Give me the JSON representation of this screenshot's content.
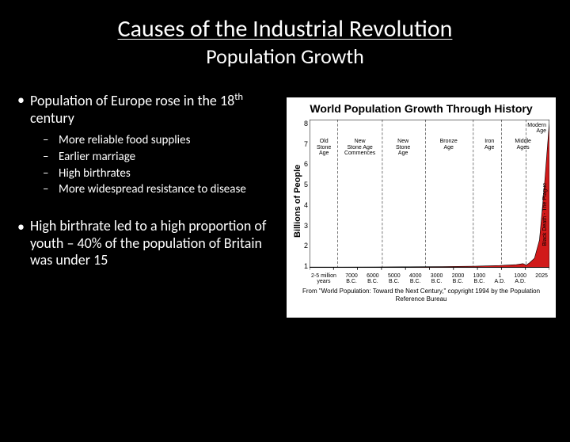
{
  "title": "Causes of the Industrial Revolution",
  "subtitle": "Population Growth",
  "bullets": {
    "b1_pre": "Population of Europe rose in the 18",
    "b1_sup": "th",
    "b1_post": " century",
    "sub1": "More reliable food supplies",
    "sub2": "Earlier marriage",
    "sub3": "High birthrates",
    "sub4": "More widespread resistance to disease",
    "b2": "High birthrate led to a high proportion of youth – 40% of the population of Britain was under 15"
  },
  "chart": {
    "type": "area",
    "title": "World Population Growth Through History",
    "ylabel": "Billions of People",
    "ylim": [
      0,
      8
    ],
    "yticks": [
      "8",
      "7",
      "6",
      "5",
      "4",
      "3",
      "2",
      "1"
    ],
    "xticks": [
      {
        "top": "2-5 million",
        "bot": "years"
      },
      {
        "top": "7000",
        "bot": "B.C."
      },
      {
        "top": "6000",
        "bot": "B.C."
      },
      {
        "top": "5000",
        "bot": "B.C."
      },
      {
        "top": "4000",
        "bot": "B.C."
      },
      {
        "top": "3000",
        "bot": "B.C."
      },
      {
        "top": "2000",
        "bot": "B.C."
      },
      {
        "top": "1000",
        "bot": "B.C."
      },
      {
        "top": "1",
        "bot": "A.D."
      },
      {
        "top": "1000",
        "bot": "A.D."
      },
      {
        "top": "2025",
        "bot": ""
      }
    ],
    "eras": [
      {
        "label": "Old\nStone\nAge",
        "w": 12
      },
      {
        "label": "New\nStone Age\nCommences",
        "w": 18
      },
      {
        "label": "New\nStone\nAge",
        "w": 18
      },
      {
        "label": "Bronze\nAge",
        "w": 20
      },
      {
        "label": "Iron\nAge",
        "w": 14
      },
      {
        "label": "Middle\nAges",
        "w": 14
      }
    ],
    "annotations": {
      "modern": "Modern\nAge",
      "plague": "Black Death - The Plague"
    },
    "colors": {
      "bg": "#ffffff",
      "line": "#000000",
      "fill": "#d11a1a",
      "divider": "#000000"
    },
    "series_points": [
      [
        0,
        0.01
      ],
      [
        40,
        0.015
      ],
      [
        80,
        0.02
      ],
      [
        120,
        0.03
      ],
      [
        160,
        0.04
      ],
      [
        200,
        0.06
      ],
      [
        230,
        0.1
      ],
      [
        250,
        0.15
      ],
      [
        258,
        0.2
      ],
      [
        262,
        0.12
      ],
      [
        266,
        0.25
      ],
      [
        272,
        0.5
      ],
      [
        278,
        1.5
      ],
      [
        284,
        4.5
      ],
      [
        290,
        8.0
      ]
    ],
    "caption": "From \"World Population: Toward the Next Century,\" copyright 1994 by the Population Reference Bureau"
  }
}
